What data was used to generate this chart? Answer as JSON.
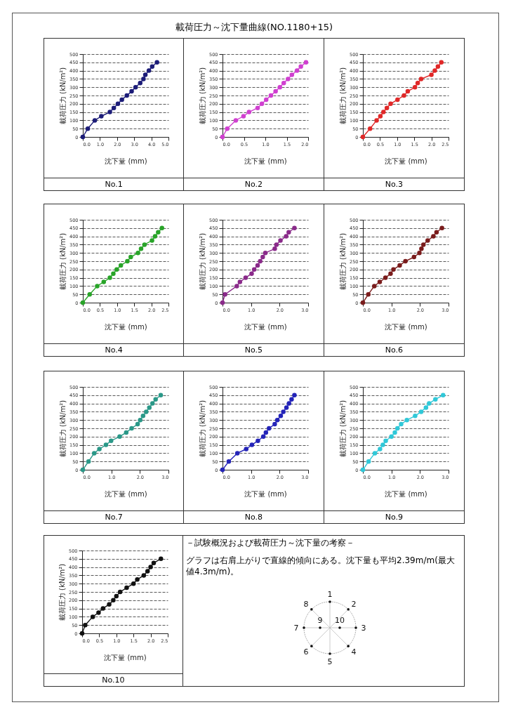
{
  "chart_data": [
    {
      "type": "other",
      "title": "載荷圧力～沈下量曲線(NO.1180+15)"
    },
    {
      "type": "line",
      "title": "No.1",
      "xlabel": "沈下量 (mm)",
      "ylabel": "載荷圧力 (kN/m²)",
      "marker": "circle",
      "line_style": "solid",
      "grid": "y",
      "xlim": [
        0,
        5
      ],
      "ylim": [
        0,
        500
      ],
      "xticks": [
        {
          "value": 0,
          "label": "0.0"
        },
        {
          "value": 1,
          "label": "1.0"
        },
        {
          "value": 2,
          "label": "2.0"
        },
        {
          "value": 3,
          "label": "3.0"
        },
        {
          "value": 4,
          "label": "4.0"
        },
        {
          "value": 5,
          "label": "5.0"
        }
      ],
      "yticks": [
        0,
        50,
        100,
        150,
        200,
        250,
        300,
        350,
        400,
        450,
        500
      ],
      "x": [
        0,
        0.29,
        0.7,
        1.08,
        1.58,
        1.81,
        2.05,
        2.28,
        2.57,
        2.85,
        3.08,
        3.35,
        3.54,
        3.65,
        3.86,
        4.05,
        4.33
      ],
      "series": [
        {
          "color": "#1c1c78",
          "values": [
            0,
            50,
            100,
            125,
            150,
            175,
            200,
            225,
            250,
            275,
            300,
            325,
            350,
            375,
            400,
            425,
            450
          ]
        }
      ]
    },
    {
      "type": "line",
      "title": "No.2",
      "xlabel": "沈下量 (mm)",
      "ylabel": "載荷圧力 (kN/m²)",
      "marker": "circle",
      "line_style": "solid",
      "grid": "y",
      "xlim": [
        0,
        2
      ],
      "ylim": [
        0,
        500
      ],
      "xticks": [
        {
          "value": 0,
          "label": "0.0"
        },
        {
          "value": 0.5,
          "label": "0.5"
        },
        {
          "value": 1,
          "label": "1.0"
        },
        {
          "value": 1.5,
          "label": "1.5"
        },
        {
          "value": 2,
          "label": "2.0"
        }
      ],
      "yticks": [
        0,
        50,
        100,
        150,
        200,
        250,
        300,
        350,
        400,
        450,
        500
      ],
      "x": [
        0,
        0.11,
        0.31,
        0.49,
        0.62,
        0.82,
        0.92,
        1.02,
        1.13,
        1.24,
        1.34,
        1.43,
        1.53,
        1.62,
        1.74,
        1.83,
        1.95
      ],
      "series": [
        {
          "color": "#d040d0",
          "values": [
            0,
            50,
            100,
            125,
            150,
            175,
            200,
            225,
            250,
            275,
            300,
            325,
            350,
            375,
            400,
            425,
            450
          ]
        }
      ]
    },
    {
      "type": "line",
      "title": "No.3",
      "xlabel": "沈下量 (mm)",
      "ylabel": "載荷圧力 (kN/m²)",
      "marker": "circle",
      "line_style": "solid",
      "grid": "y",
      "xlim": [
        0,
        2.5
      ],
      "ylim": [
        0,
        500
      ],
      "xticks": [
        {
          "value": 0,
          "label": "0.0"
        },
        {
          "value": 0.5,
          "label": "0.5"
        },
        {
          "value": 1,
          "label": "1.0"
        },
        {
          "value": 1.5,
          "label": "1.5"
        },
        {
          "value": 2,
          "label": "2.0"
        },
        {
          "value": 2.5,
          "label": "2.5"
        }
      ],
      "yticks": [
        0,
        50,
        100,
        150,
        200,
        250,
        300,
        350,
        400,
        450,
        500
      ],
      "x": [
        0,
        0.21,
        0.4,
        0.51,
        0.6,
        0.7,
        0.81,
        1.01,
        1.2,
        1.31,
        1.52,
        1.6,
        1.7,
        2.0,
        2.1,
        2.19,
        2.29
      ],
      "series": [
        {
          "color": "#e02828",
          "values": [
            0,
            50,
            100,
            125,
            150,
            175,
            200,
            225,
            250,
            275,
            300,
            325,
            350,
            375,
            400,
            425,
            450
          ]
        }
      ]
    },
    {
      "type": "line",
      "title": "No.4",
      "xlabel": "沈下量 (mm)",
      "ylabel": "載荷圧力 (kN/m²)",
      "marker": "circle",
      "line_style": "solid",
      "grid": "y",
      "xlim": [
        0,
        2.5
      ],
      "ylim": [
        0,
        500
      ],
      "xticks": [
        {
          "value": 0,
          "label": "0.0"
        },
        {
          "value": 0.5,
          "label": "0.5"
        },
        {
          "value": 1,
          "label": "1.0"
        },
        {
          "value": 1.5,
          "label": "1.5"
        },
        {
          "value": 2,
          "label": "2.0"
        },
        {
          "value": 2.5,
          "label": "2.5"
        }
      ],
      "yticks": [
        0,
        50,
        100,
        150,
        200,
        250,
        300,
        350,
        400,
        450,
        500
      ],
      "x": [
        0,
        0.2,
        0.42,
        0.61,
        0.79,
        0.89,
        0.99,
        1.11,
        1.3,
        1.4,
        1.61,
        1.7,
        1.8,
        2.02,
        2.11,
        2.2,
        2.31
      ],
      "series": [
        {
          "color": "#28a428",
          "values": [
            0,
            50,
            100,
            125,
            150,
            175,
            200,
            225,
            250,
            275,
            300,
            325,
            350,
            375,
            400,
            425,
            450
          ]
        }
      ]
    },
    {
      "type": "line",
      "title": "No.5",
      "xlabel": "沈下量 (mm)",
      "ylabel": "載荷圧力 (kN/m²)",
      "marker": "circle",
      "line_style": "solid",
      "grid": "y",
      "xlim": [
        0,
        3
      ],
      "ylim": [
        0,
        500
      ],
      "xticks": [
        {
          "value": 0,
          "label": "0.0"
        },
        {
          "value": 1,
          "label": "1.0"
        },
        {
          "value": 2,
          "label": "2.0"
        },
        {
          "value": 3,
          "label": "3.0"
        }
      ],
      "yticks": [
        0,
        50,
        100,
        150,
        200,
        250,
        300,
        350,
        400,
        450,
        500
      ],
      "x": [
        0,
        0.09,
        0.5,
        0.61,
        0.81,
        1.02,
        1.11,
        1.23,
        1.32,
        1.41,
        1.5,
        1.83,
        1.89,
        2.03,
        2.23,
        2.32,
        2.52
      ],
      "series": [
        {
          "color": "#8a2a8a",
          "values": [
            0,
            50,
            100,
            125,
            150,
            175,
            200,
            225,
            250,
            275,
            300,
            325,
            350,
            375,
            400,
            425,
            450
          ]
        }
      ]
    },
    {
      "type": "line",
      "title": "No.6",
      "xlabel": "沈下量 (mm)",
      "ylabel": "載荷圧力 (kN/m²)",
      "marker": "circle",
      "line_style": "solid",
      "grid": "y",
      "xlim": [
        0,
        3
      ],
      "ylim": [
        0,
        500
      ],
      "xticks": [
        {
          "value": 0,
          "label": "0.0"
        },
        {
          "value": 1,
          "label": "1.0"
        },
        {
          "value": 2,
          "label": "2.0"
        },
        {
          "value": 3,
          "label": "3.0"
        }
      ],
      "yticks": [
        0,
        50,
        100,
        150,
        200,
        250,
        300,
        350,
        400,
        450,
        500
      ],
      "x": [
        0,
        0.19,
        0.4,
        0.59,
        0.79,
        0.97,
        1.07,
        1.29,
        1.49,
        1.79,
        1.98,
        2.05,
        2.12,
        2.27,
        2.47,
        2.58,
        2.77
      ],
      "series": [
        {
          "color": "#7a1c1c",
          "values": [
            0,
            50,
            100,
            125,
            150,
            175,
            200,
            225,
            250,
            275,
            300,
            325,
            350,
            375,
            400,
            425,
            450
          ]
        }
      ]
    },
    {
      "type": "line",
      "title": "No.7",
      "xlabel": "沈下量 (mm)",
      "ylabel": "載荷圧力 (kN/m²)",
      "marker": "circle",
      "line_style": "solid",
      "grid": "y",
      "xlim": [
        0,
        3
      ],
      "ylim": [
        0,
        500
      ],
      "xticks": [
        {
          "value": 0,
          "label": "0.0"
        },
        {
          "value": 1,
          "label": "1.0"
        },
        {
          "value": 2,
          "label": "2.0"
        },
        {
          "value": 3,
          "label": "3.0"
        }
      ],
      "yticks": [
        0,
        50,
        100,
        150,
        200,
        250,
        300,
        350,
        400,
        450,
        500
      ],
      "x": [
        0,
        0.2,
        0.4,
        0.58,
        0.81,
        0.99,
        1.29,
        1.52,
        1.71,
        1.92,
        2.01,
        2.11,
        2.22,
        2.33,
        2.44,
        2.55,
        2.73
      ],
      "series": [
        {
          "color": "#2a9888",
          "values": [
            0,
            50,
            100,
            125,
            150,
            175,
            200,
            225,
            250,
            275,
            300,
            325,
            350,
            375,
            400,
            425,
            450
          ]
        }
      ]
    },
    {
      "type": "line",
      "title": "No.8",
      "xlabel": "沈下量 (mm)",
      "ylabel": "載荷圧力 (kN/m²)",
      "marker": "circle",
      "line_style": "solid",
      "grid": "y",
      "xlim": [
        0,
        3
      ],
      "ylim": [
        0,
        500
      ],
      "xticks": [
        {
          "value": 0,
          "label": "0.0"
        },
        {
          "value": 1,
          "label": "1.0"
        },
        {
          "value": 2,
          "label": "2.0"
        },
        {
          "value": 3,
          "label": "3.0"
        }
      ],
      "yticks": [
        0,
        50,
        100,
        150,
        200,
        250,
        300,
        350,
        400,
        450,
        500
      ],
      "x": [
        0,
        0.22,
        0.52,
        0.83,
        1.03,
        1.24,
        1.43,
        1.52,
        1.63,
        1.83,
        1.92,
        2.04,
        2.13,
        2.24,
        2.33,
        2.42,
        2.52
      ],
      "series": [
        {
          "color": "#2424b8",
          "values": [
            0,
            50,
            100,
            125,
            150,
            175,
            200,
            225,
            250,
            275,
            300,
            325,
            350,
            375,
            400,
            425,
            450
          ]
        }
      ]
    },
    {
      "type": "line",
      "title": "No.9",
      "xlabel": "沈下量 (mm)",
      "ylabel": "載荷圧力 (kN/m²)",
      "marker": "circle",
      "line_style": "solid",
      "grid": "y",
      "xlim": [
        0,
        3
      ],
      "ylim": [
        0,
        500
      ],
      "xticks": [
        {
          "value": 0,
          "label": "0.0"
        },
        {
          "value": 1,
          "label": "1.0"
        },
        {
          "value": 2,
          "label": "2.0"
        },
        {
          "value": 3,
          "label": "3.0"
        }
      ],
      "yticks": [
        0,
        50,
        100,
        150,
        200,
        250,
        300,
        350,
        400,
        450,
        500
      ],
      "x": [
        0,
        0.2,
        0.42,
        0.6,
        0.7,
        0.8,
        1.0,
        1.12,
        1.21,
        1.34,
        1.54,
        1.83,
        2.04,
        2.21,
        2.32,
        2.54,
        2.81
      ],
      "series": [
        {
          "color": "#30c8d8",
          "values": [
            0,
            50,
            100,
            125,
            150,
            175,
            200,
            225,
            250,
            275,
            300,
            325,
            350,
            375,
            400,
            425,
            450
          ]
        }
      ]
    },
    {
      "type": "line",
      "title": "No.10",
      "xlabel": "沈下量 (mm)",
      "ylabel": "載荷圧力 (kN/m²)",
      "marker": "circle",
      "line_style": "solid",
      "grid": "y",
      "xlim": [
        0,
        2.5
      ],
      "ylim": [
        0,
        500
      ],
      "xticks": [
        {
          "value": 0,
          "label": "0.0"
        },
        {
          "value": 0.5,
          "label": "0.5"
        },
        {
          "value": 1,
          "label": "1.0"
        },
        {
          "value": 1.5,
          "label": "1.5"
        },
        {
          "value": 2,
          "label": "2.0"
        },
        {
          "value": 2.5,
          "label": "2.5"
        }
      ],
      "yticks": [
        0,
        50,
        100,
        150,
        200,
        250,
        300,
        350,
        400,
        450,
        500
      ],
      "x": [
        0,
        0.09,
        0.31,
        0.48,
        0.61,
        0.79,
        0.91,
        1.0,
        1.11,
        1.3,
        1.5,
        1.61,
        1.8,
        1.91,
        2.0,
        2.09,
        2.3
      ],
      "series": [
        {
          "color": "#111111",
          "values": [
            0,
            50,
            100,
            125,
            150,
            175,
            200,
            225,
            250,
            275,
            300,
            325,
            350,
            375,
            400,
            425,
            450
          ]
        }
      ]
    },
    {
      "type": "other",
      "title": "－試験概況および載荷圧力～沈下量の考察－",
      "annotations": [
        "グラフは右肩上がりで直線的傾向にある。沈下量も平均2.39m/m(最大値4.3m/m)。",
        "1",
        "2",
        "3",
        "4",
        "5",
        "6",
        "7",
        "8",
        "9",
        "10"
      ]
    }
  ]
}
